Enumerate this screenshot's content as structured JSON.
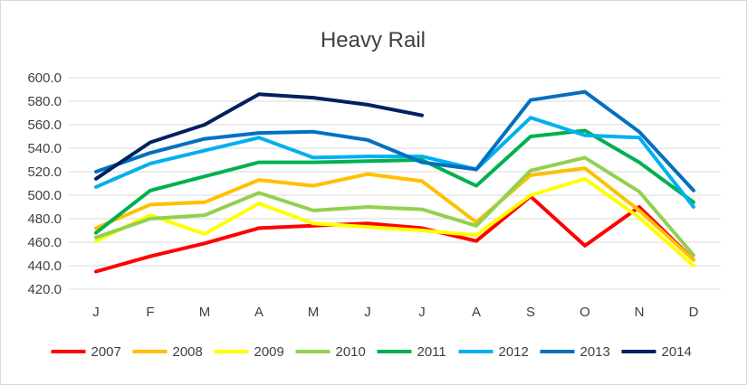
{
  "chart_data": {
    "type": "line",
    "title": "Heavy Rail",
    "xlabel": "",
    "ylabel": "",
    "categories": [
      "J",
      "F",
      "M",
      "A",
      "M",
      "J",
      "J",
      "A",
      "S",
      "O",
      "N",
      "D"
    ],
    "ylim": [
      420,
      600
    ],
    "yticks": [
      "420.0",
      "440.0",
      "460.0",
      "480.0",
      "500.0",
      "520.0",
      "540.0",
      "560.0",
      "580.0",
      "600.0"
    ],
    "grid": "horizontal",
    "legend_position": "bottom",
    "series": [
      {
        "name": "2007",
        "color": "#ff0000",
        "values": [
          435,
          448,
          459,
          472,
          474,
          476,
          472,
          461,
          499,
          457,
          490,
          445
        ]
      },
      {
        "name": "2008",
        "color": "#ffc000",
        "values": [
          472,
          492,
          494,
          513,
          508,
          518,
          512,
          477,
          517,
          523,
          487,
          445
        ]
      },
      {
        "name": "2009",
        "color": "#ffff00",
        "values": [
          461,
          483,
          467,
          493,
          476,
          473,
          470,
          466,
          500,
          514,
          481,
          440
        ]
      },
      {
        "name": "2010",
        "color": "#92d050",
        "values": [
          464,
          480,
          483,
          502,
          487,
          490,
          488,
          474,
          521,
          532,
          503,
          449
        ]
      },
      {
        "name": "2011",
        "color": "#00b050",
        "values": [
          468,
          504,
          516,
          528,
          528,
          529,
          530,
          508,
          550,
          555,
          528,
          494
        ]
      },
      {
        "name": "2012",
        "color": "#00b0f0",
        "values": [
          507,
          527,
          538,
          549,
          532,
          533,
          533,
          522,
          566,
          551,
          549,
          490
        ]
      },
      {
        "name": "2013",
        "color": "#0070c0",
        "values": [
          520,
          536,
          548,
          553,
          554,
          547,
          528,
          522,
          581,
          588,
          554,
          504
        ]
      },
      {
        "name": "2014",
        "color": "#002060",
        "values": [
          514,
          545,
          560,
          586,
          583,
          577,
          568,
          null,
          null,
          null,
          null,
          null
        ]
      }
    ]
  }
}
